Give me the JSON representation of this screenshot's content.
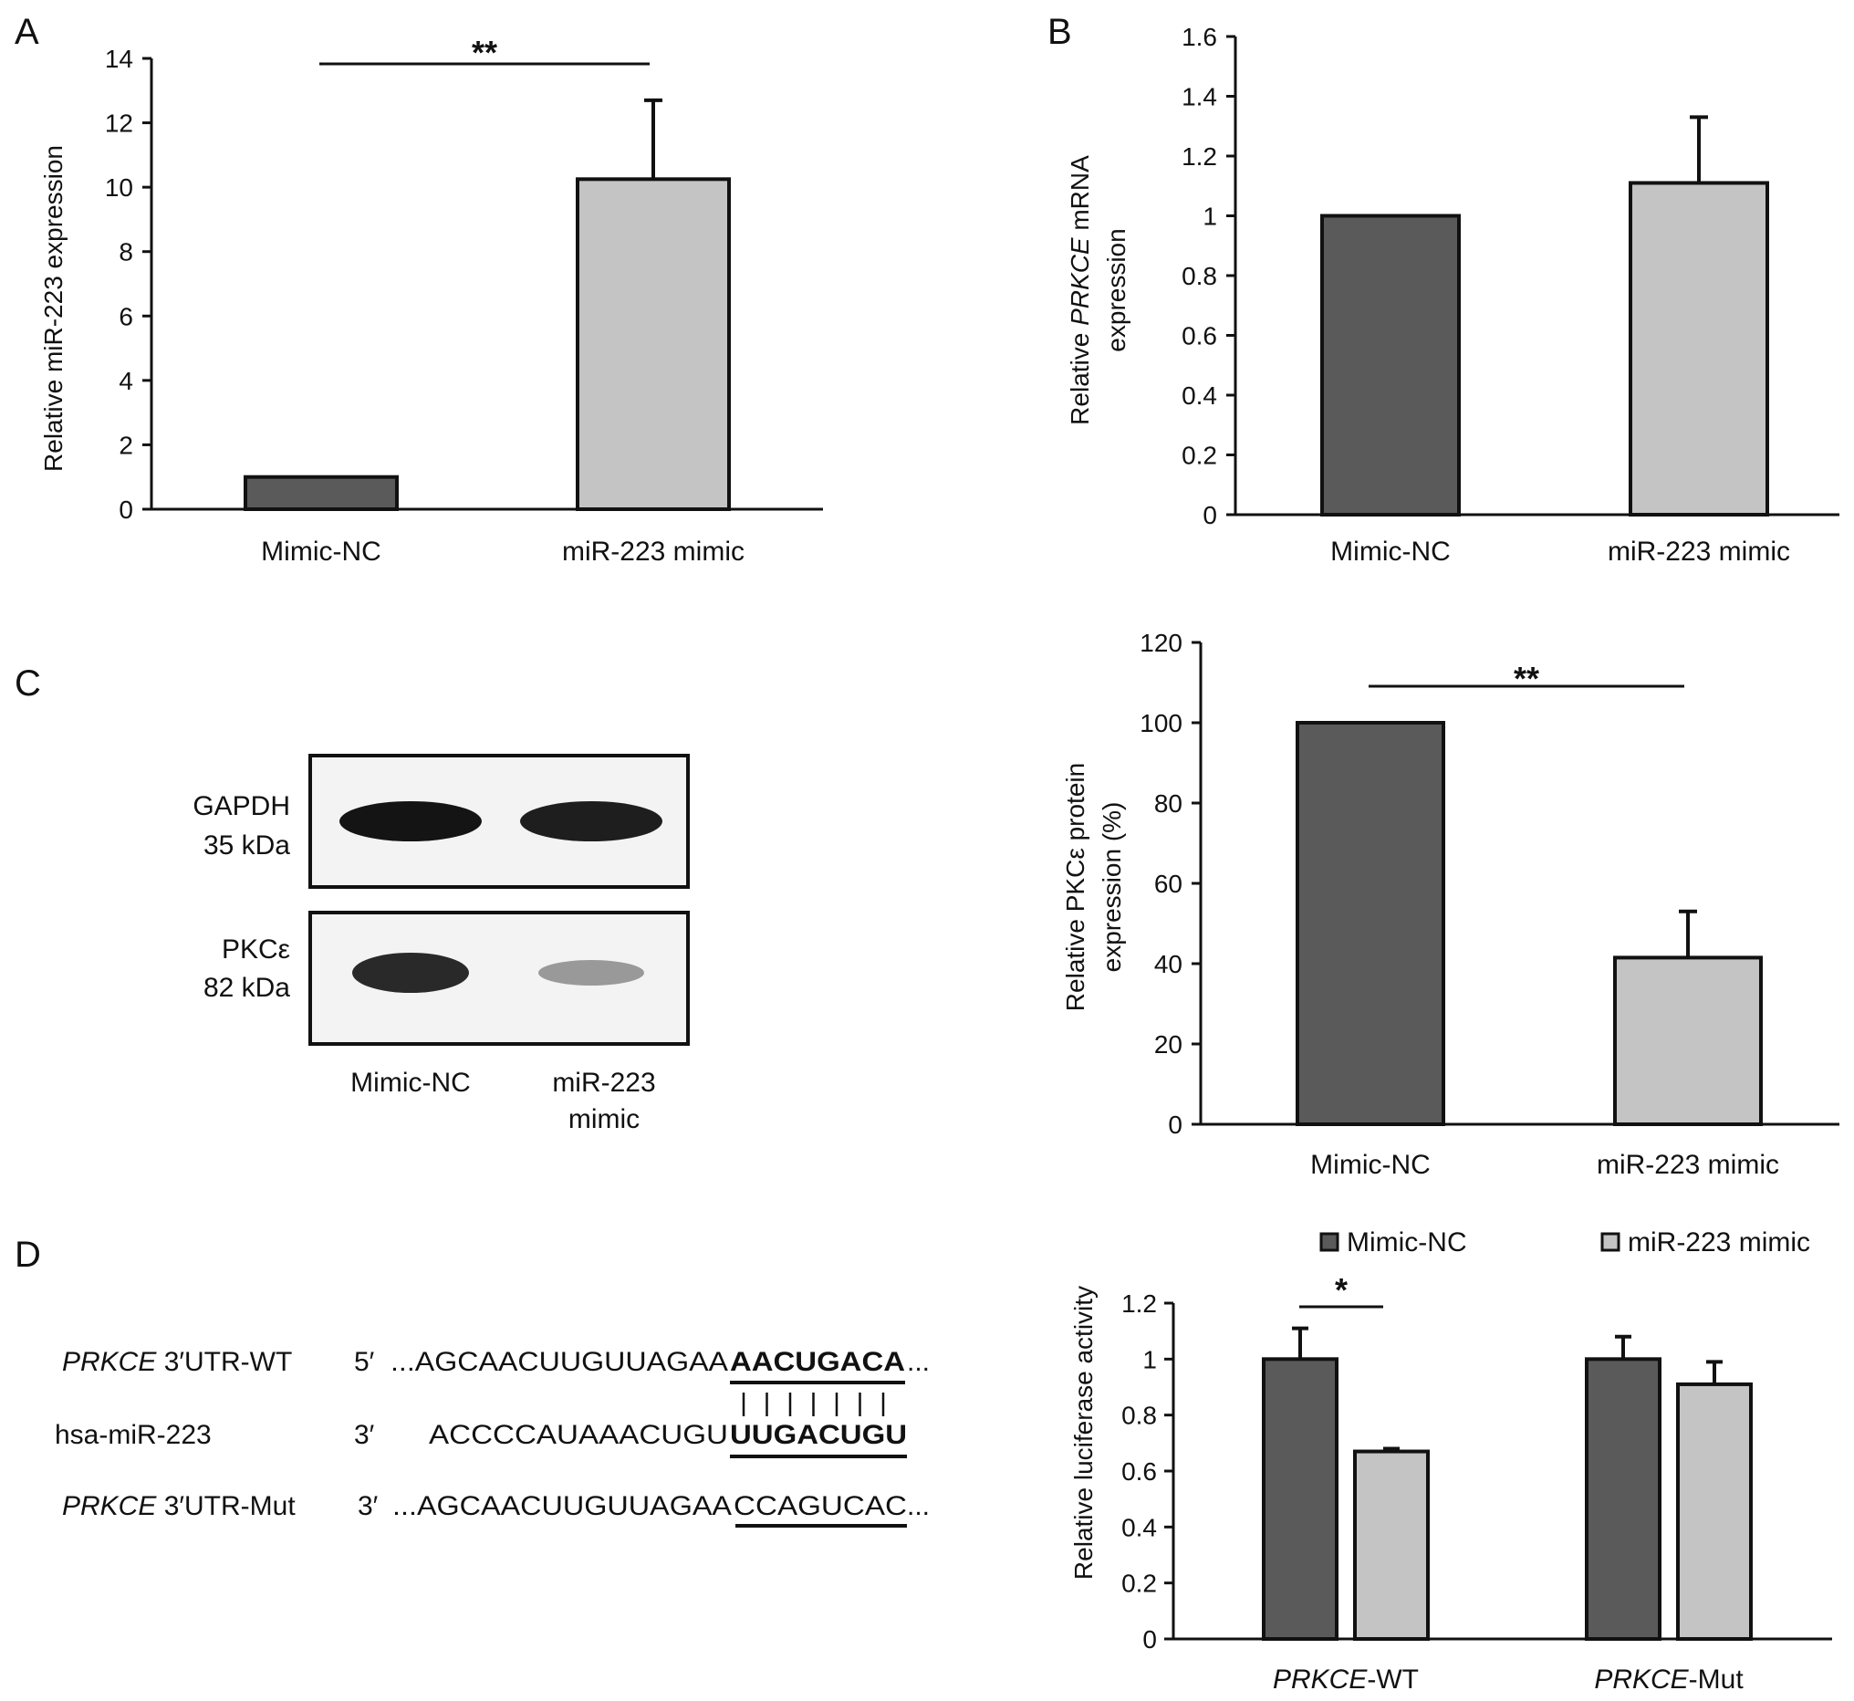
{
  "colors": {
    "dark": "#5a5a5a",
    "light": "#c4c4c4",
    "axis": "#111111"
  },
  "panels": {
    "A": "A",
    "B": "B",
    "C": "C",
    "D": "D"
  },
  "chart_data": [
    {
      "id": "A",
      "type": "bar",
      "categories": [
        "Mimic-NC",
        "miR-223 mimic"
      ],
      "values": [
        1.0,
        10.25
      ],
      "errors": [
        0,
        2.45
      ],
      "ylabel": "Relative miR-223 expression",
      "ylim": [
        0,
        14
      ],
      "yticks": [
        "0",
        "2",
        "4",
        "6",
        "8",
        "10",
        "12",
        "14"
      ],
      "significance": "**"
    },
    {
      "id": "B",
      "type": "bar",
      "categories": [
        "Mimic-NC",
        "miR-223 mimic"
      ],
      "values": [
        1.0,
        1.11
      ],
      "errors": [
        0,
        0.22
      ],
      "ylabel_pre": "Relative ",
      "ylabel_italic": "PRKCE",
      "ylabel_post": " mRNA",
      "ylabel_line2": "expression",
      "ylim": [
        0,
        1.6
      ],
      "yticks": [
        "0",
        "0.2",
        "0.4",
        "0.6",
        "0.8",
        "1",
        "1.2",
        "1.4",
        "1.6"
      ],
      "significance": ""
    },
    {
      "id": "C",
      "type": "bar",
      "categories": [
        "Mimic-NC",
        "miR-223 mimic"
      ],
      "values": [
        100,
        41.5
      ],
      "errors": [
        0,
        11.5
      ],
      "ylabel": "Relative PKCε protein",
      "ylabel_line2": "expression (%)",
      "ylim": [
        0,
        120
      ],
      "yticks": [
        "0",
        "20",
        "40",
        "60",
        "80",
        "100",
        "120"
      ],
      "significance": "**"
    },
    {
      "id": "D",
      "type": "bar",
      "groups": [
        {
          "italic": "PRKCE",
          "suffix": "-WT"
        },
        {
          "italic": "PRKCE",
          "suffix": "-Mut"
        }
      ],
      "series": [
        {
          "name": "Mimic-NC",
          "values": [
            1.0,
            1.0
          ],
          "errors": [
            0.11,
            0.08
          ]
        },
        {
          "name": "miR-223 mimic",
          "values": [
            0.67,
            0.91
          ],
          "errors": [
            0.01,
            0.08
          ]
        }
      ],
      "ylabel": "Relative luciferase activity",
      "ylim": [
        0,
        1.2
      ],
      "yticks": [
        "0",
        "0.2",
        "0.4",
        "0.6",
        "0.8",
        "1",
        "1.2"
      ],
      "significance": "*",
      "legend_position": "top"
    }
  ],
  "blot": {
    "rows": [
      {
        "label": "GAPDH",
        "size": "35 kDa",
        "intensities": [
          1.0,
          0.95
        ]
      },
      {
        "label": "PKCε",
        "size": "82 kDa",
        "intensities": [
          0.9,
          0.35
        ]
      }
    ],
    "lanes": [
      "Mimic-NC",
      "miR-223"
    ],
    "lane2_line2": "mimic"
  },
  "sequences": {
    "wt": {
      "label_italic": "PRKCE",
      "label_rest": " 3′UTR-WT",
      "end": "5′",
      "pre": "...AGCAACUUGUUAGAA",
      "site": "AACUGACA",
      "post": "..."
    },
    "mirna": {
      "label": "hsa-miR-223",
      "end": "3′",
      "pre": "ACCCCAUAAACUGU",
      "site": "UUGACUGU"
    },
    "mut": {
      "label_italic": "PRKCE",
      "label_rest": " 3′UTR-Mut",
      "end": "3′",
      "pre": "...AGCAACUUGUUAGAA",
      "site": "CCAGUCAC",
      "post": "..."
    }
  }
}
